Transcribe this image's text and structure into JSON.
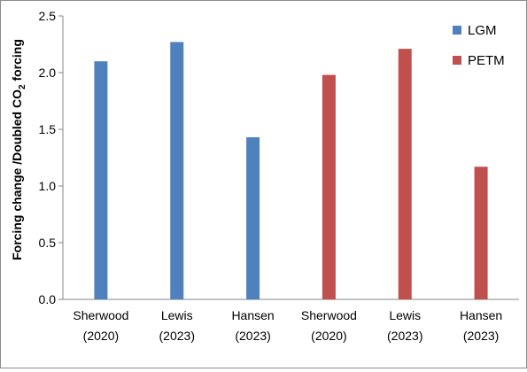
{
  "chart_data": {
    "type": "bar",
    "categories": [
      {
        "line1": "Sherwood",
        "line2": "(2020)"
      },
      {
        "line1": "Lewis",
        "line2": "(2023)"
      },
      {
        "line1": "Hansen",
        "line2": "(2023)"
      },
      {
        "line1": "Sherwood",
        "line2": "(2020)"
      },
      {
        "line1": "Lewis",
        "line2": "(2023)"
      },
      {
        "line1": "Hansen",
        "line2": "(2023)"
      }
    ],
    "series": [
      {
        "name": "LGM",
        "color": "#4f81bd",
        "values": [
          2.1,
          2.27,
          1.43,
          null,
          null,
          null
        ]
      },
      {
        "name": "PETM",
        "color": "#c0504d",
        "values": [
          null,
          null,
          null,
          1.98,
          2.21,
          1.17
        ]
      }
    ],
    "ylabel": {
      "main": "Forcing change /Doubled CO",
      "subscript": "2",
      "suffix": " forcing"
    },
    "ylim": [
      0,
      2.5
    ],
    "yticks": [
      "0.0",
      "0.5",
      "1.0",
      "1.5",
      "2.0",
      "2.5"
    ],
    "ytick_values": [
      0,
      0.5,
      1.0,
      1.5,
      2.0,
      2.5
    ],
    "grid": false,
    "legend_position": "top-right"
  }
}
